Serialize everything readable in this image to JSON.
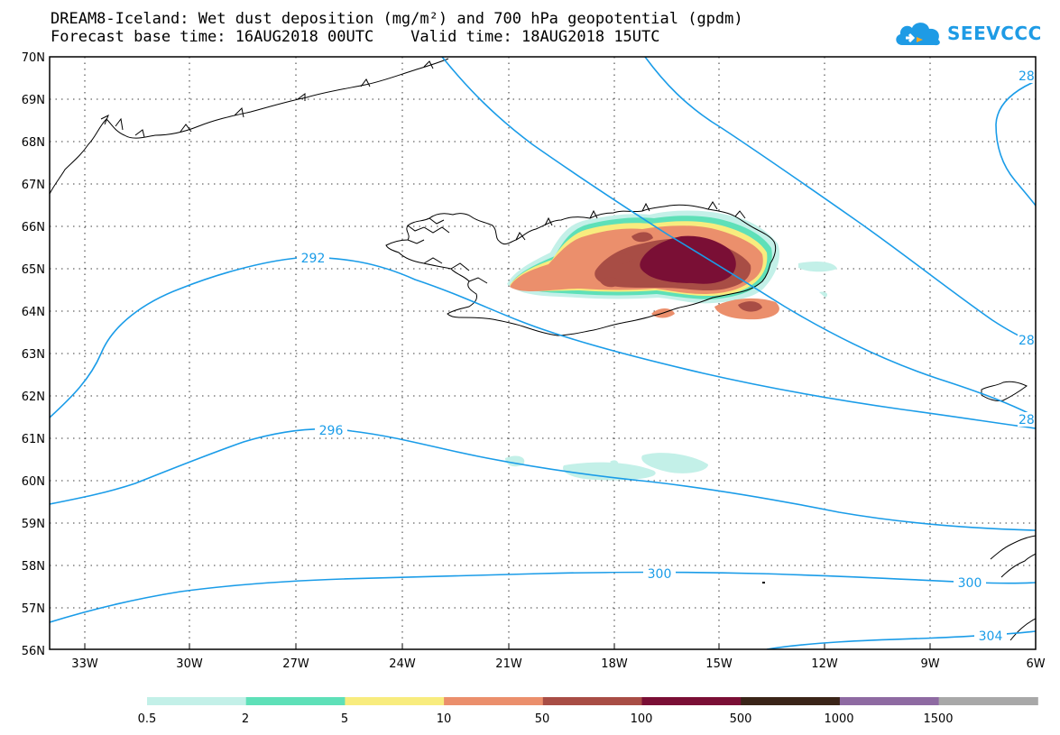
{
  "header": {
    "line1": "DREAM8-Iceland: Wet dust deposition (mg/m²) and 700 hPa geopotential (gpdm)",
    "line2": "Forecast base time: 16AUG2018 00UTC    Valid time: 18AUG2018 15UTC"
  },
  "logo": {
    "text": "SEEVCCC",
    "icon": "cloud-icon",
    "color": "#1e9be5"
  },
  "map": {
    "lat_labels": [
      "70N",
      "69N",
      "68N",
      "67N",
      "66N",
      "65N",
      "64N",
      "63N",
      "62N",
      "61N",
      "60N",
      "59N",
      "58N",
      "57N",
      "56N"
    ],
    "lon_labels": [
      "33W",
      "30W",
      "27W",
      "24W",
      "21W",
      "18W",
      "15W",
      "12W",
      "9W",
      "6W"
    ],
    "contour_color": "#1a9ce8",
    "contour_labels": [
      {
        "text": "292"
      },
      {
        "text": "296"
      },
      {
        "text": "300"
      },
      {
        "text": "300"
      },
      {
        "text": "304"
      },
      {
        "text": "28"
      },
      {
        "text": "28"
      },
      {
        "text": "28"
      }
    ]
  },
  "colorbar": {
    "colors": [
      "#c3f0e8",
      "#5ee0b8",
      "#f8ec7e",
      "#eb8f6c",
      "#a84d45",
      "#7a0f35",
      "#3a2418",
      "#8e6aa2",
      "#a8a8a8"
    ],
    "labels": [
      "0.5",
      "2",
      "5",
      "10",
      "50",
      "100",
      "500",
      "1000",
      "1500"
    ]
  }
}
